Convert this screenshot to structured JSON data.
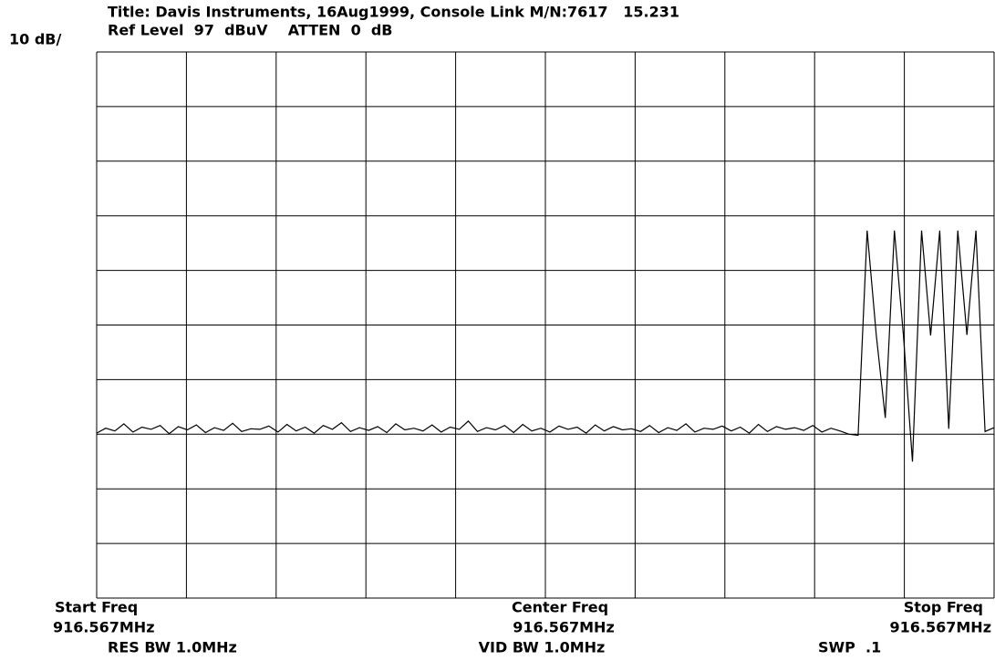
{
  "chart_data": {
    "type": "line",
    "title": "Title: Davis Instruments, 16Aug1999, Console Link M/N:7617   15.231",
    "subtitle": "Ref Level  97  dBuV    ATTEN  0  dB",
    "scale_label": "10 dB/",
    "ylim": [
      -3,
      97
    ],
    "grid": true,
    "color": "#000000",
    "start_label": "Start Freq",
    "start_value": "916.567MHz",
    "center_label": "Center Freq",
    "center_value": "916.567MHz",
    "stop_label": "Stop Freq",
    "stop_value": "916.567MHz",
    "res_bw": "RES BW 1.0MHz",
    "vid_bw": "VID BW 1.0MHz",
    "sweep": "SWP  .1",
    "values": [
      27.2,
      28.1,
      27.6,
      28.9,
      27.4,
      28.3,
      27.9,
      28.6,
      27.1,
      28.4,
      27.8,
      28.7,
      27.3,
      28.2,
      27.7,
      29.0,
      27.5,
      28.0,
      27.9,
      28.5,
      27.4,
      28.8,
      27.6,
      28.3,
      27.2,
      28.6,
      27.9,
      29.1,
      27.5,
      28.2,
      27.7,
      28.4,
      27.3,
      28.9,
      27.8,
      28.1,
      27.6,
      28.7,
      27.4,
      28.3,
      27.9,
      29.4,
      27.5,
      28.2,
      27.8,
      28.6,
      27.3,
      28.8,
      27.6,
      28.1,
      27.4,
      28.5,
      27.9,
      28.3,
      27.2,
      28.7,
      27.6,
      28.4,
      27.8,
      28.0,
      27.5,
      28.6,
      27.3,
      28.2,
      27.7,
      28.9,
      27.4,
      28.1,
      27.9,
      28.5,
      27.6,
      28.3,
      27.2,
      28.8,
      27.5,
      28.4,
      27.9,
      28.2,
      27.7,
      28.6,
      27.4,
      28.1,
      27.6,
      27.0,
      26.8,
      64.3,
      45.2,
      30.0,
      64.3,
      45.1,
      22.0,
      64.3,
      45.1,
      64.3,
      28.0,
      64.3,
      45.2,
      64.3,
      27.5,
      28.2
    ]
  }
}
